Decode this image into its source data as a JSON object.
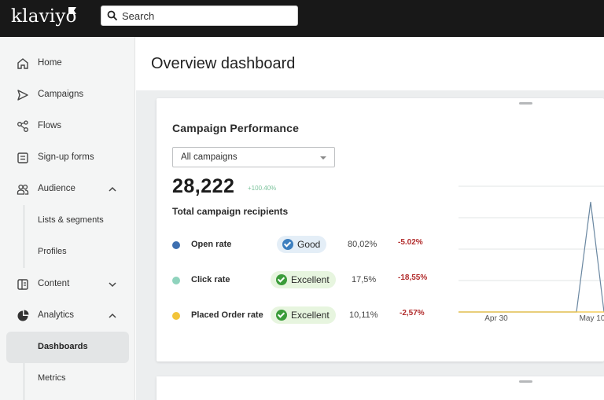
{
  "app": {
    "logo_text": "klaviyo"
  },
  "search": {
    "label": "Search"
  },
  "sidebar": {
    "items": [
      {
        "label": "Home",
        "icon": "home-icon"
      },
      {
        "label": "Campaigns",
        "icon": "send-icon"
      },
      {
        "label": "Flows",
        "icon": "flows-icon"
      },
      {
        "label": "Sign-up forms",
        "icon": "form-icon"
      },
      {
        "label": "Audience",
        "icon": "audience-icon"
      },
      {
        "label": "Lists & segments"
      },
      {
        "label": "Profiles"
      },
      {
        "label": "Content",
        "icon": "content-icon"
      },
      {
        "label": "Analytics",
        "icon": "analytics-icon"
      },
      {
        "label": "Dashboards"
      },
      {
        "label": "Metrics"
      }
    ]
  },
  "main": {
    "title": "Overview dashboard",
    "card": {
      "title": "Campaign Performance",
      "dropdown_value": "All campaigns",
      "total_value": "28,222",
      "total_change": "+100.40%",
      "total_label": "Total campaign recipients",
      "metrics": [
        {
          "label": "Open rate",
          "badge": "Good",
          "value": "80,02%",
          "change": "-5.02%",
          "color": "#3d6fb0"
        },
        {
          "label": "Click rate",
          "badge": "Excellent",
          "value": "17,5%",
          "change": "-18,55%",
          "color": "#8fd3bd"
        },
        {
          "label": "Placed Order rate",
          "badge": "Excellent",
          "value": "10,11%",
          "change": "-2,57%",
          "color": "#f2c43a"
        }
      ]
    },
    "chart": {
      "x_labels": [
        "Apr 30",
        "May 10"
      ]
    }
  },
  "colors": {
    "topbar": "#181818",
    "sidebar": "#f4f5f5",
    "good_badge": "#3d7fbf",
    "excellent_badge": "#3b9c3a",
    "negative": "#b22c2c",
    "positive": "#7cc39c"
  }
}
